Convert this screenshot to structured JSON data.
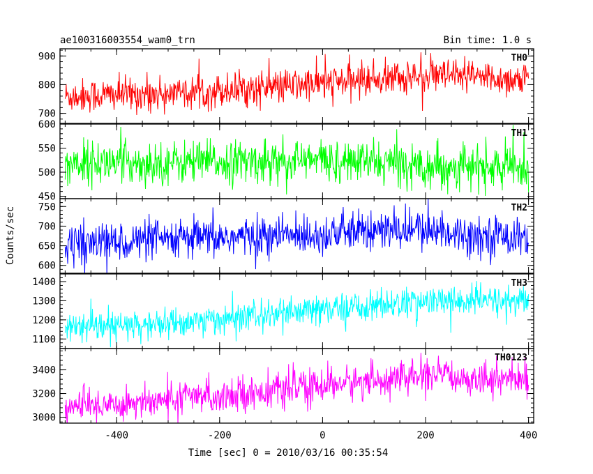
{
  "title_left": "ae100316003554_wam0_trn",
  "title_right": "Bin time: 1.0 s",
  "ylabel": "Counts/sec",
  "xlabel": "Time [sec] 0 = 2010/03/16 00:35:54",
  "chart_data": [
    {
      "type": "line",
      "name": "TH0",
      "color": "#ff0000",
      "xlim": [
        -510,
        410
      ],
      "ylim": [
        665,
        925
      ],
      "yticks": [
        700,
        800,
        900
      ],
      "trend": {
        "x": [
          -500,
          -300,
          -100,
          0,
          100,
          200,
          300,
          400
        ],
        "y": [
          760,
          770,
          790,
          805,
          820,
          830,
          825,
          815
        ]
      },
      "noise_sd": 30,
      "x": [
        -500,
        400
      ]
    },
    {
      "type": "line",
      "name": "TH1",
      "color": "#00ff00",
      "xlim": [
        -510,
        410
      ],
      "ylim": [
        445,
        600
      ],
      "yticks": [
        450,
        500,
        550,
        600
      ],
      "trend": {
        "x": [
          -500,
          -300,
          -100,
          0,
          100,
          200,
          300,
          400
        ],
        "y": [
          520,
          520,
          522,
          525,
          520,
          515,
          510,
          508
        ]
      },
      "noise_sd": 22,
      "x": [
        -500,
        400
      ]
    },
    {
      "type": "line",
      "name": "TH2",
      "color": "#0000ff",
      "xlim": [
        -510,
        410
      ],
      "ylim": [
        580,
        770
      ],
      "yticks": [
        600,
        650,
        700,
        750
      ],
      "trend": {
        "x": [
          -500,
          -300,
          -100,
          0,
          100,
          200,
          300,
          400
        ],
        "y": [
          655,
          665,
          675,
          680,
          688,
          690,
          678,
          672
        ]
      },
      "noise_sd": 25,
      "x": [
        -500,
        400
      ]
    },
    {
      "type": "line",
      "name": "TH3",
      "color": "#00ffff",
      "xlim": [
        -510,
        410
      ],
      "ylim": [
        1050,
        1440
      ],
      "yticks": [
        1100,
        1200,
        1300,
        1400
      ],
      "trend": {
        "x": [
          -500,
          -300,
          -100,
          0,
          100,
          200,
          300,
          400
        ],
        "y": [
          1150,
          1180,
          1225,
          1250,
          1275,
          1295,
          1300,
          1300
        ]
      },
      "noise_sd": 40,
      "x": [
        -500,
        400
      ]
    },
    {
      "type": "line",
      "name": "TH0123",
      "color": "#ff00ff",
      "xlim": [
        -510,
        410
      ],
      "ylim": [
        2950,
        3580
      ],
      "yticks": [
        3000,
        3200,
        3400
      ],
      "trend": {
        "x": [
          -500,
          -300,
          -100,
          0,
          100,
          200,
          300,
          400
        ],
        "y": [
          3080,
          3150,
          3220,
          3270,
          3310,
          3350,
          3330,
          3320
        ]
      },
      "noise_sd": 70,
      "x": [
        -500,
        400
      ]
    }
  ],
  "xticks": [
    -400,
    -200,
    0,
    200,
    400
  ]
}
